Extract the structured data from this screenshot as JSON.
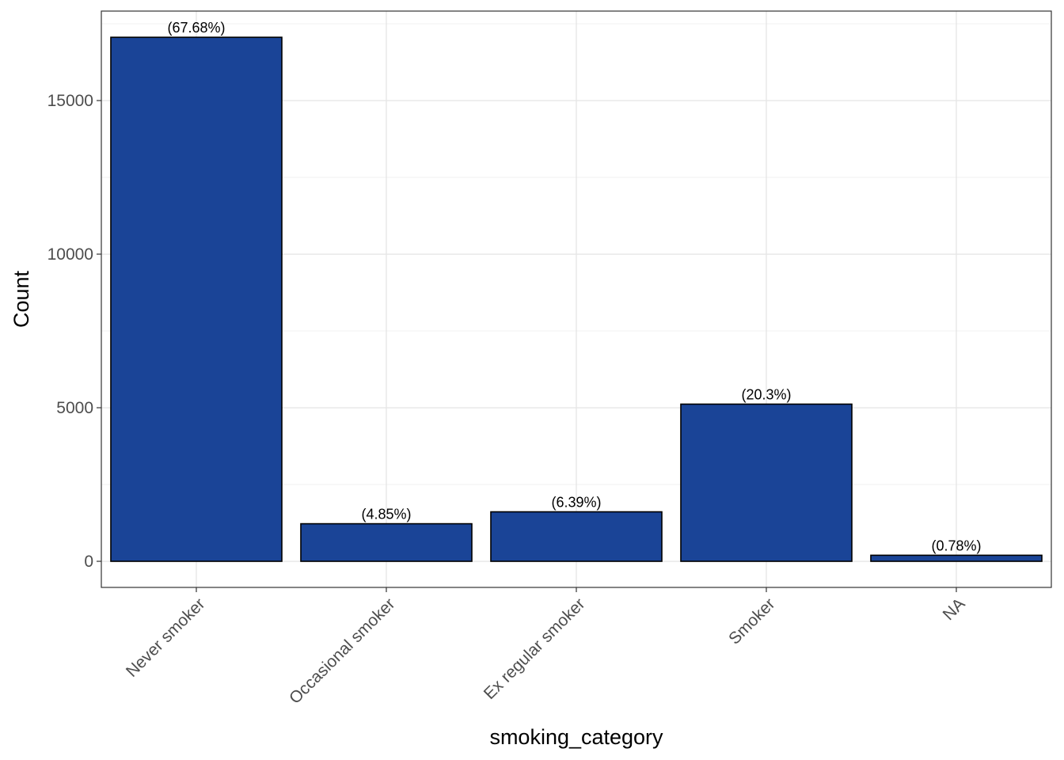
{
  "chart_data": {
    "type": "bar",
    "xlabel": "smoking_category",
    "ylabel": "Count",
    "categories": [
      "Never smoker",
      "Occasional smoker",
      "Ex regular smoker",
      "Smoker",
      "NA"
    ],
    "values": [
      17060,
      1223,
      1611,
      5117,
      197
    ],
    "data_labels": [
      "(67.68%)",
      "(4.85%)",
      "(6.39%)",
      "(20.3%)",
      "(0.78%)"
    ],
    "y_ticks": [
      0,
      5000,
      10000,
      15000
    ],
    "y_tick_labels": [
      "0",
      "5000",
      "10000",
      "15000"
    ],
    "ylim": [
      -850,
      17913
    ],
    "grid": true,
    "bar_color": "#1a4497",
    "bar_border_color": "#000000"
  }
}
